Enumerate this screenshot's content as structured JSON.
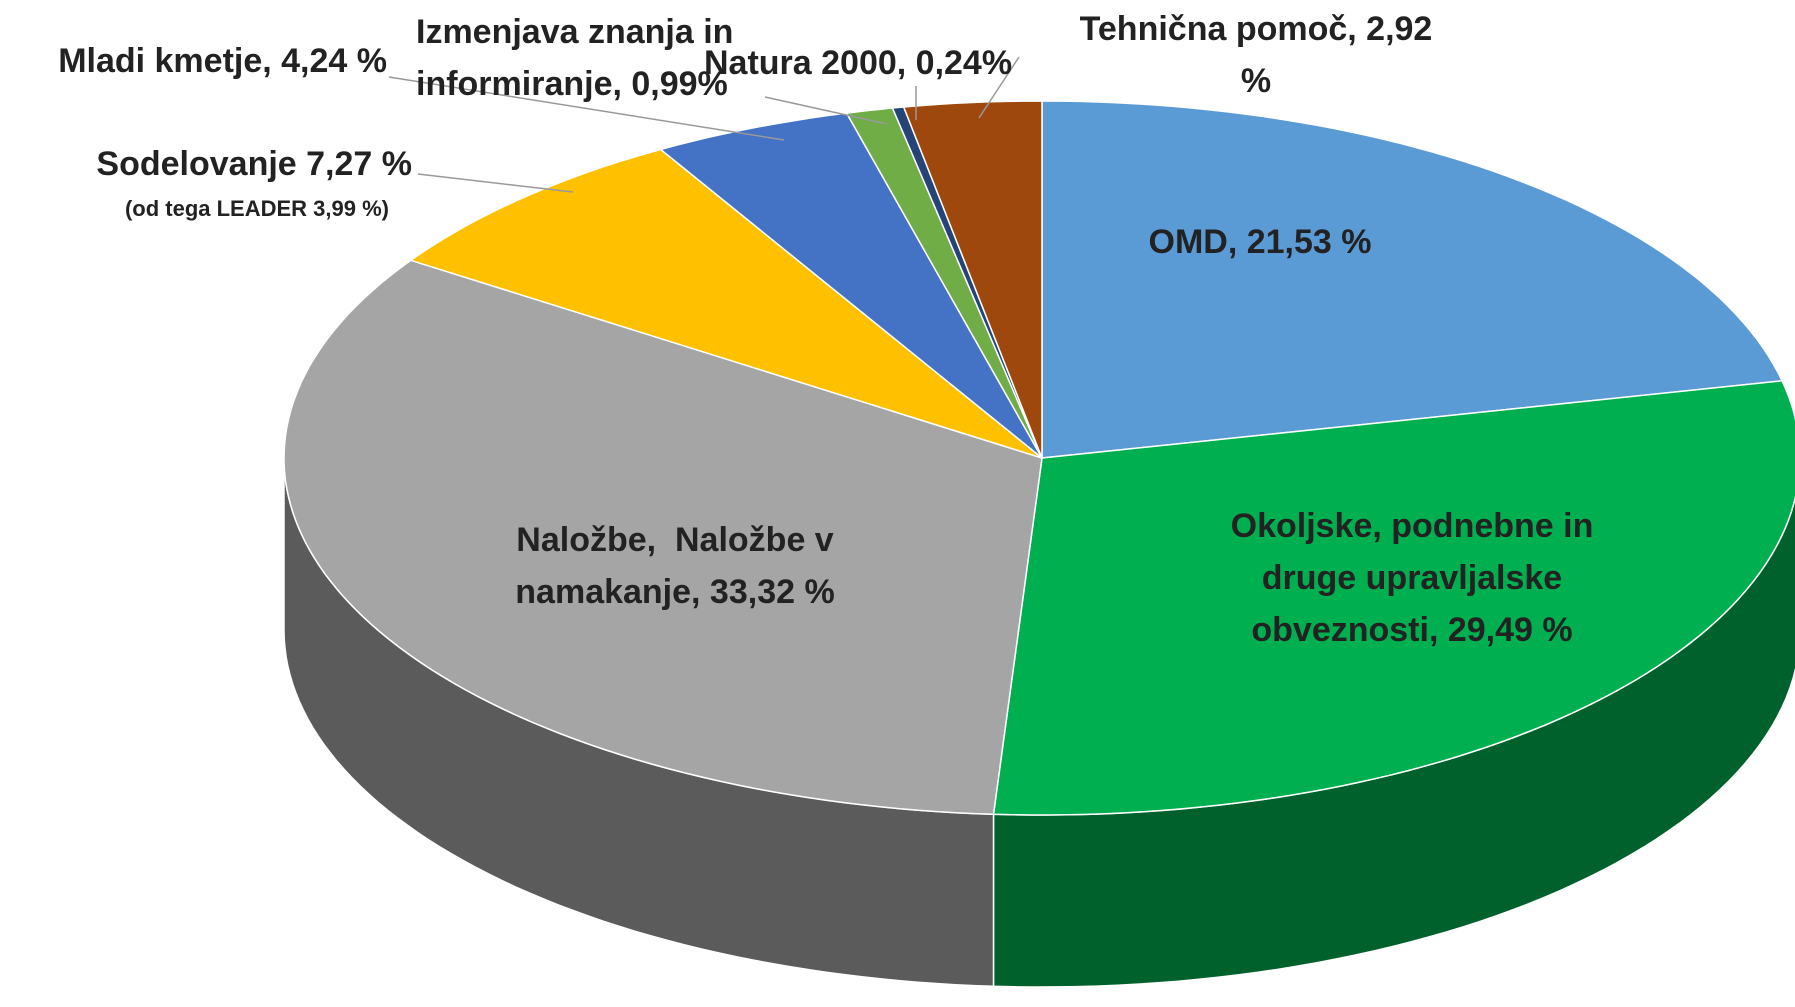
{
  "chart_data": {
    "type": "pie3d",
    "values": [
      21.53,
      29.49,
      33.32,
      7.27,
      4.24,
      0.99,
      0.24,
      2.92
    ],
    "value_labels": [
      "OMD, 21,53 %",
      "Okoljske, podnebne in\ndruge upravljalske\nobveznosti, 29,49 %",
      "Naložbe,  Naložbe v\nnamakanje, 33,32 %",
      "Sodelovanje 7,27 %",
      "Mladi kmetje, 4,24 %",
      "Izmenjava znanja in\ninformiranje, 0,99%",
      "Natura 2000, 0,24%",
      "Tehnična pomoč, 2,92\n%"
    ],
    "colors": [
      "#5b9bd5",
      "#00b050",
      "#a5a5a5",
      "#ffc000",
      "#4472c4",
      "#70ad47",
      "#264478",
      "#9e480e"
    ],
    "annotations": [
      "(od tega LEADER 3,99 %)"
    ]
  }
}
